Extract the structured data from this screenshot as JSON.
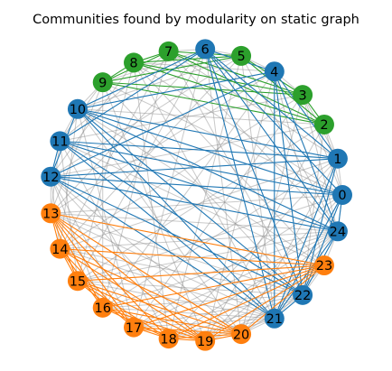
{
  "figure": {
    "title": "Communities found by modularity on static graph"
  },
  "colors": {
    "community_blue": "#1f77b4",
    "community_green": "#2ca02c",
    "community_orange": "#ff7f0e",
    "background_edge": "#888888"
  },
  "graph": {
    "layout": "circular",
    "node_count": 25,
    "nodes": [
      {
        "id": "0",
        "community": "blue"
      },
      {
        "id": "1",
        "community": "blue"
      },
      {
        "id": "2",
        "community": "green"
      },
      {
        "id": "3",
        "community": "green"
      },
      {
        "id": "4",
        "community": "blue"
      },
      {
        "id": "5",
        "community": "green"
      },
      {
        "id": "6",
        "community": "blue"
      },
      {
        "id": "7",
        "community": "green"
      },
      {
        "id": "8",
        "community": "green"
      },
      {
        "id": "9",
        "community": "green"
      },
      {
        "id": "10",
        "community": "blue"
      },
      {
        "id": "11",
        "community": "blue"
      },
      {
        "id": "12",
        "community": "blue"
      },
      {
        "id": "13",
        "community": "orange"
      },
      {
        "id": "14",
        "community": "orange"
      },
      {
        "id": "15",
        "community": "orange"
      },
      {
        "id": "16",
        "community": "orange"
      },
      {
        "id": "17",
        "community": "orange"
      },
      {
        "id": "18",
        "community": "orange"
      },
      {
        "id": "19",
        "community": "orange"
      },
      {
        "id": "20",
        "community": "orange"
      },
      {
        "id": "21",
        "community": "blue"
      },
      {
        "id": "22",
        "community": "blue"
      },
      {
        "id": "23",
        "community": "orange"
      },
      {
        "id": "24",
        "community": "blue"
      }
    ],
    "community_edges": [
      [
        "2",
        "3"
      ],
      [
        "2",
        "5"
      ],
      [
        "2",
        "7"
      ],
      [
        "2",
        "8"
      ],
      [
        "2",
        "9"
      ],
      [
        "3",
        "5"
      ],
      [
        "3",
        "7"
      ],
      [
        "3",
        "8"
      ],
      [
        "3",
        "9"
      ],
      [
        "5",
        "7"
      ],
      [
        "5",
        "8"
      ],
      [
        "5",
        "9"
      ],
      [
        "7",
        "8"
      ],
      [
        "7",
        "9"
      ],
      [
        "8",
        "9"
      ],
      [
        "0",
        "6"
      ],
      [
        "0",
        "10"
      ],
      [
        "0",
        "11"
      ],
      [
        "0",
        "12"
      ],
      [
        "0",
        "21"
      ],
      [
        "0",
        "22"
      ],
      [
        "1",
        "4"
      ],
      [
        "1",
        "6"
      ],
      [
        "1",
        "10"
      ],
      [
        "1",
        "11"
      ],
      [
        "1",
        "12"
      ],
      [
        "1",
        "21"
      ],
      [
        "1",
        "22"
      ],
      [
        "4",
        "6"
      ],
      [
        "4",
        "10"
      ],
      [
        "4",
        "12"
      ],
      [
        "4",
        "21"
      ],
      [
        "4",
        "22"
      ],
      [
        "4",
        "24"
      ],
      [
        "6",
        "10"
      ],
      [
        "6",
        "11"
      ],
      [
        "6",
        "21"
      ],
      [
        "6",
        "22"
      ],
      [
        "6",
        "24"
      ],
      [
        "10",
        "12"
      ],
      [
        "10",
        "21"
      ],
      [
        "10",
        "22"
      ],
      [
        "10",
        "24"
      ],
      [
        "11",
        "12"
      ],
      [
        "11",
        "21"
      ],
      [
        "11",
        "22"
      ],
      [
        "11",
        "24"
      ],
      [
        "12",
        "21"
      ],
      [
        "12",
        "22"
      ],
      [
        "12",
        "24"
      ],
      [
        "21",
        "22"
      ],
      [
        "21",
        "24"
      ],
      [
        "22",
        "24"
      ],
      [
        "0",
        "24"
      ],
      [
        "13",
        "14"
      ],
      [
        "13",
        "15"
      ],
      [
        "13",
        "16"
      ],
      [
        "13",
        "17"
      ],
      [
        "13",
        "18"
      ],
      [
        "13",
        "19"
      ],
      [
        "13",
        "20"
      ],
      [
        "13",
        "23"
      ],
      [
        "14",
        "15"
      ],
      [
        "14",
        "16"
      ],
      [
        "14",
        "17"
      ],
      [
        "14",
        "19"
      ],
      [
        "14",
        "20"
      ],
      [
        "14",
        "23"
      ],
      [
        "15",
        "17"
      ],
      [
        "15",
        "18"
      ],
      [
        "15",
        "19"
      ],
      [
        "15",
        "20"
      ],
      [
        "15",
        "23"
      ],
      [
        "16",
        "18"
      ],
      [
        "16",
        "19"
      ],
      [
        "16",
        "20"
      ],
      [
        "16",
        "23"
      ],
      [
        "17",
        "18"
      ],
      [
        "17",
        "19"
      ],
      [
        "17",
        "20"
      ],
      [
        "17",
        "23"
      ],
      [
        "18",
        "19"
      ],
      [
        "18",
        "20"
      ],
      [
        "18",
        "23"
      ],
      [
        "19",
        "20"
      ],
      [
        "19",
        "23"
      ],
      [
        "20",
        "23"
      ]
    ],
    "other_edges": [
      [
        "0",
        "3"
      ],
      [
        "0",
        "8"
      ],
      [
        "0",
        "13"
      ],
      [
        "0",
        "15"
      ],
      [
        "0",
        "17"
      ],
      [
        "0",
        "19"
      ],
      [
        "0",
        "9"
      ],
      [
        "1",
        "3"
      ],
      [
        "1",
        "7"
      ],
      [
        "1",
        "14"
      ],
      [
        "1",
        "16"
      ],
      [
        "1",
        "18"
      ],
      [
        "1",
        "20"
      ],
      [
        "2",
        "10"
      ],
      [
        "2",
        "12"
      ],
      [
        "2",
        "15"
      ],
      [
        "2",
        "19"
      ],
      [
        "2",
        "22"
      ],
      [
        "2",
        "0"
      ],
      [
        "3",
        "11"
      ],
      [
        "3",
        "14"
      ],
      [
        "3",
        "17"
      ],
      [
        "3",
        "20"
      ],
      [
        "3",
        "24"
      ],
      [
        "4",
        "8"
      ],
      [
        "4",
        "13"
      ],
      [
        "4",
        "16"
      ],
      [
        "4",
        "19"
      ],
      [
        "4",
        "23"
      ],
      [
        "5",
        "10"
      ],
      [
        "5",
        "12"
      ],
      [
        "5",
        "14"
      ],
      [
        "5",
        "18"
      ],
      [
        "5",
        "21"
      ],
      [
        "5",
        "24"
      ],
      [
        "6",
        "9"
      ],
      [
        "6",
        "13"
      ],
      [
        "6",
        "15"
      ],
      [
        "6",
        "17"
      ],
      [
        "6",
        "20"
      ],
      [
        "7",
        "11"
      ],
      [
        "7",
        "14"
      ],
      [
        "7",
        "16"
      ],
      [
        "7",
        "22"
      ],
      [
        "7",
        "24"
      ],
      [
        "8",
        "12"
      ],
      [
        "8",
        "15"
      ],
      [
        "8",
        "18"
      ],
      [
        "8",
        "21"
      ],
      [
        "8",
        "23"
      ],
      [
        "9",
        "11"
      ],
      [
        "9",
        "13"
      ],
      [
        "9",
        "16"
      ],
      [
        "9",
        "19"
      ],
      [
        "9",
        "22"
      ],
      [
        "10",
        "14"
      ],
      [
        "10",
        "17"
      ],
      [
        "10",
        "20"
      ],
      [
        "10",
        "23"
      ],
      [
        "11",
        "13"
      ],
      [
        "11",
        "15"
      ],
      [
        "11",
        "18"
      ],
      [
        "11",
        "23"
      ],
      [
        "12",
        "14"
      ],
      [
        "12",
        "16"
      ],
      [
        "12",
        "17"
      ],
      [
        "12",
        "19"
      ],
      [
        "12",
        "20"
      ],
      [
        "13",
        "21"
      ],
      [
        "13",
        "22"
      ],
      [
        "13",
        "24"
      ],
      [
        "14",
        "21"
      ],
      [
        "14",
        "22"
      ],
      [
        "14",
        "24"
      ],
      [
        "15",
        "21"
      ],
      [
        "15",
        "22"
      ],
      [
        "15",
        "24"
      ],
      [
        "16",
        "21"
      ],
      [
        "16",
        "22"
      ],
      [
        "16",
        "24"
      ],
      [
        "17",
        "21"
      ],
      [
        "17",
        "22"
      ],
      [
        "17",
        "24"
      ],
      [
        "18",
        "21"
      ],
      [
        "18",
        "22"
      ],
      [
        "18",
        "24"
      ],
      [
        "19",
        "21"
      ],
      [
        "19",
        "22"
      ],
      [
        "19",
        "24"
      ],
      [
        "20",
        "21"
      ],
      [
        "20",
        "22"
      ],
      [
        "20",
        "24"
      ],
      [
        "21",
        "23"
      ],
      [
        "22",
        "23"
      ],
      [
        "23",
        "24"
      ],
      [
        "0",
        "1"
      ],
      [
        "1",
        "2"
      ],
      [
        "3",
        "4"
      ],
      [
        "4",
        "5"
      ],
      [
        "5",
        "6"
      ],
      [
        "6",
        "7"
      ],
      [
        "9",
        "10"
      ],
      [
        "10",
        "11"
      ],
      [
        "12",
        "13"
      ],
      [
        "24",
        "0"
      ]
    ]
  }
}
